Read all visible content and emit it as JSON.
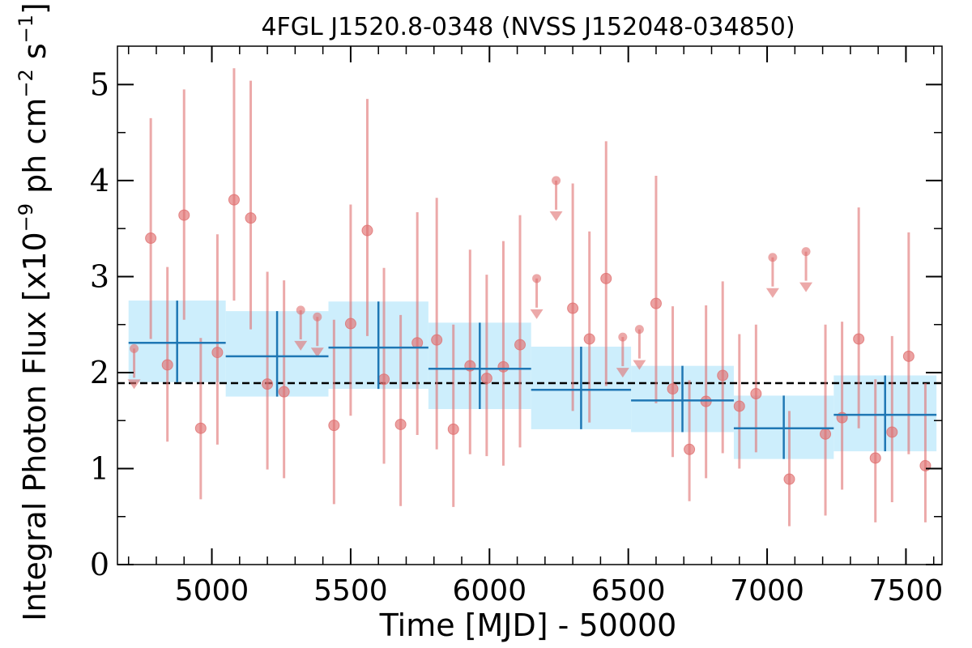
{
  "chart_data": {
    "type": "scatter",
    "title": "4FGL J1520.8-0348 (NVSS J152048-034850)",
    "xlabel": "Time [MJD] - 50000",
    "ylabel_parts": {
      "pre": "Integral Photon Flux [x10",
      "exp1": "−9",
      "mid": " ph cm",
      "exp2": "−2",
      "mid2": " s",
      "exp3": "−1",
      "post": "]"
    },
    "xlim": [
      4660,
      7630
    ],
    "ylim": [
      0,
      5.4
    ],
    "xticks": [
      5000,
      5500,
      6000,
      6500,
      7000,
      7500
    ],
    "xtick_labels": [
      "5000",
      "5500",
      "6000",
      "6500",
      "7000",
      "7500"
    ],
    "yticks": [
      0,
      1,
      2,
      3,
      4,
      5
    ],
    "ytick_labels": [
      "0",
      "1",
      "2",
      "3",
      "4",
      "5"
    ],
    "x_minor_step": 100,
    "y_minor_step": 0.5,
    "mean_flux": 1.89,
    "colors": {
      "points": "#e07070",
      "bins": "#1f77b4",
      "bin_band": "#cdeefc",
      "mean_line": "#000000"
    },
    "points": [
      {
        "x": 4780,
        "y": 3.4,
        "lo": 2.35,
        "hi": 4.65
      },
      {
        "x": 4840,
        "y": 2.08,
        "lo": 1.28,
        "hi": 3.1
      },
      {
        "x": 4900,
        "y": 3.64,
        "lo": 2.55,
        "hi": 4.95
      },
      {
        "x": 4960,
        "y": 1.42,
        "lo": 0.68,
        "hi": 2.36
      },
      {
        "x": 5020,
        "y": 2.21,
        "lo": 1.25,
        "hi": 3.44
      },
      {
        "x": 5080,
        "y": 3.8,
        "lo": 2.75,
        "hi": 5.17
      },
      {
        "x": 5140,
        "y": 3.61,
        "lo": 2.45,
        "hi": 5.04
      },
      {
        "x": 5200,
        "y": 1.88,
        "lo": 0.99,
        "hi": 3.05
      },
      {
        "x": 5260,
        "y": 1.8,
        "lo": 0.9,
        "hi": 2.96
      },
      {
        "x": 5440,
        "y": 1.45,
        "lo": 0.63,
        "hi": 2.55
      },
      {
        "x": 5500,
        "y": 2.51,
        "lo": 1.55,
        "hi": 3.75
      },
      {
        "x": 5560,
        "y": 3.48,
        "lo": 2.38,
        "hi": 4.85
      },
      {
        "x": 5620,
        "y": 1.93,
        "lo": 1.05,
        "hi": 3.09
      },
      {
        "x": 5680,
        "y": 1.46,
        "lo": 0.61,
        "hi": 2.6
      },
      {
        "x": 5740,
        "y": 2.31,
        "lo": 1.35,
        "hi": 3.67
      },
      {
        "x": 5810,
        "y": 2.34,
        "lo": 1.2,
        "hi": 3.82
      },
      {
        "x": 5870,
        "y": 1.41,
        "lo": 0.6,
        "hi": 2.5
      },
      {
        "x": 5930,
        "y": 2.07,
        "lo": 1.15,
        "hi": 3.28
      },
      {
        "x": 5990,
        "y": 1.94,
        "lo": 1.13,
        "hi": 3.02
      },
      {
        "x": 6050,
        "y": 2.06,
        "lo": 1.03,
        "hi": 3.37
      },
      {
        "x": 6110,
        "y": 2.29,
        "lo": 1.22,
        "hi": 3.64
      },
      {
        "x": 6300,
        "y": 2.67,
        "lo": 1.6,
        "hi": 3.97
      },
      {
        "x": 6360,
        "y": 2.35,
        "lo": 1.48,
        "hi": 3.47
      },
      {
        "x": 6420,
        "y": 2.98,
        "lo": 1.86,
        "hi": 4.41
      },
      {
        "x": 6600,
        "y": 2.72,
        "lo": 1.68,
        "hi": 4.05
      },
      {
        "x": 6660,
        "y": 1.83,
        "lo": 1.12,
        "hi": 2.69
      },
      {
        "x": 6720,
        "y": 1.2,
        "lo": 0.66,
        "hi": 1.92
      },
      {
        "x": 6780,
        "y": 1.7,
        "lo": 0.9,
        "hi": 2.7
      },
      {
        "x": 6840,
        "y": 1.97,
        "lo": 1.16,
        "hi": 2.95
      },
      {
        "x": 6900,
        "y": 1.65,
        "lo": 1.0,
        "hi": 2.4
      },
      {
        "x": 6960,
        "y": 1.78,
        "lo": 1.17,
        "hi": 2.5
      },
      {
        "x": 7080,
        "y": 0.89,
        "lo": 0.4,
        "hi": 1.6
      },
      {
        "x": 7210,
        "y": 1.36,
        "lo": 0.51,
        "hi": 2.5
      },
      {
        "x": 7270,
        "y": 1.53,
        "lo": 0.78,
        "hi": 2.53
      },
      {
        "x": 7330,
        "y": 2.35,
        "lo": 1.42,
        "hi": 3.72
      },
      {
        "x": 7390,
        "y": 1.11,
        "lo": 0.44,
        "hi": 1.93
      },
      {
        "x": 7450,
        "y": 1.38,
        "lo": 0.65,
        "hi": 2.38
      },
      {
        "x": 7510,
        "y": 2.17,
        "lo": 1.15,
        "hi": 3.46
      },
      {
        "x": 7570,
        "y": 1.03,
        "lo": 0.44,
        "hi": 1.89
      }
    ],
    "upper_limits": [
      {
        "x": 4720,
        "y": 2.25
      },
      {
        "x": 5320,
        "y": 2.65
      },
      {
        "x": 5380,
        "y": 2.58
      },
      {
        "x": 6170,
        "y": 2.98
      },
      {
        "x": 6240,
        "y": 4.0
      },
      {
        "x": 6480,
        "y": 2.37
      },
      {
        "x": 6540,
        "y": 2.45
      },
      {
        "x": 7020,
        "y": 3.2
      },
      {
        "x": 7140,
        "y": 3.26
      }
    ],
    "bins": [
      {
        "x0": 4700,
        "x1": 5050,
        "xc": 4875,
        "y": 2.31,
        "lo": 1.9,
        "hi": 2.75
      },
      {
        "x0": 5050,
        "x1": 5420,
        "xc": 5235,
        "y": 2.17,
        "lo": 1.75,
        "hi": 2.64
      },
      {
        "x0": 5420,
        "x1": 5780,
        "xc": 5600,
        "y": 2.26,
        "lo": 1.83,
        "hi": 2.74
      },
      {
        "x0": 5780,
        "x1": 6150,
        "xc": 5965,
        "y": 2.04,
        "lo": 1.62,
        "hi": 2.52
      },
      {
        "x0": 6150,
        "x1": 6510,
        "xc": 6330,
        "y": 1.82,
        "lo": 1.41,
        "hi": 2.27
      },
      {
        "x0": 6510,
        "x1": 6880,
        "xc": 6695,
        "y": 1.71,
        "lo": 1.38,
        "hi": 2.07
      },
      {
        "x0": 6880,
        "x1": 7240,
        "xc": 7060,
        "y": 1.42,
        "lo": 1.1,
        "hi": 1.76
      },
      {
        "x0": 7240,
        "x1": 7610,
        "xc": 7425,
        "y": 1.56,
        "lo": 1.18,
        "hi": 1.97
      }
    ]
  }
}
